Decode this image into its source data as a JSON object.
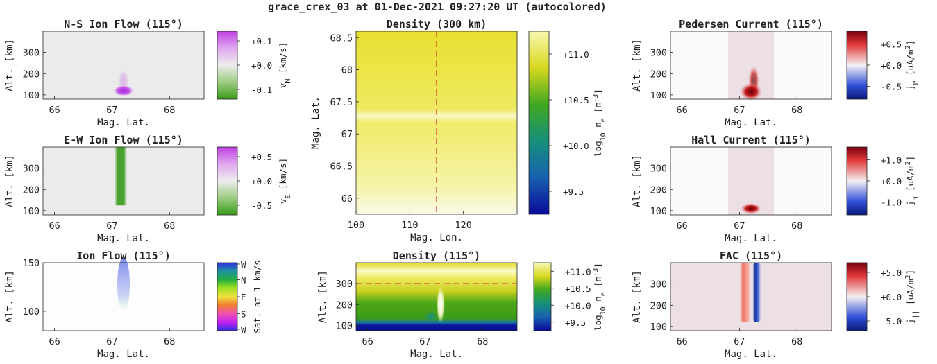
{
  "suptitle": "grace_crex_03 at 01-Dec-2021 09:27:20 UT (autocolored)",
  "colors": {
    "flow_neg": "#3a9a1a",
    "flow_mid": "#ececec",
    "flow_pos": "#c040e0",
    "bwr_neg": "#1a2a9a",
    "bwr_mid": "#ece0e4",
    "bwr_pos": "#8a0010",
    "density_low": "#0a1a9a",
    "density_mid": "#34a018",
    "density_high": "#f8f8a8"
  },
  "chart_data": [
    {
      "id": "ns-ion-flow",
      "type": "heatmap",
      "title": "N-S Ion Flow (115°)",
      "xlabel": "Mag. Lat.",
      "ylabel": "Alt. [km]",
      "xlim": [
        65.8,
        68.6
      ],
      "ylim": [
        80,
        400
      ],
      "xticks": [
        "66",
        "67",
        "68"
      ],
      "yticks": [
        "100",
        "200",
        "300"
      ],
      "colorbar": {
        "label": "v_N [km/s]",
        "ticks": [
          "+0.1",
          "+0.0",
          "-0.1"
        ],
        "range": [
          -0.14,
          0.14
        ]
      },
      "feature": {
        "kind": "blob",
        "lat": 67.2,
        "alt": 120,
        "value": 0.1
      }
    },
    {
      "id": "ew-ion-flow",
      "type": "heatmap",
      "title": "E-W Ion Flow (115°)",
      "xlabel": "Mag. Lat.",
      "ylabel": "Alt. [km]",
      "xlim": [
        65.8,
        68.6
      ],
      "ylim": [
        80,
        400
      ],
      "xticks": [
        "66",
        "67",
        "68"
      ],
      "yticks": [
        "100",
        "200",
        "300"
      ],
      "colorbar": {
        "label": "v_E [km/s]",
        "ticks": [
          "+0.5",
          "+0.0",
          "-0.5"
        ],
        "range": [
          -0.7,
          0.7
        ]
      },
      "feature": {
        "kind": "column",
        "lat": 67.15,
        "alt_range": [
          125,
          400
        ],
        "value": -0.5
      }
    },
    {
      "id": "ion-flow",
      "type": "heatmap",
      "title": "Ion Flow (115°)",
      "xlabel": "Mag. Lat.",
      "ylabel": "Alt. [km]",
      "xlim": [
        65.8,
        68.6
      ],
      "ylim": [
        80,
        150
      ],
      "xticks": [
        "66",
        "67",
        "68"
      ],
      "yticks": [
        "100",
        "150"
      ],
      "colorbar": {
        "label": "Sat. at 1 km/s",
        "ticks": [
          "W",
          "N",
          "E",
          "S",
          "W"
        ]
      },
      "feature": {
        "kind": "faint-column",
        "lat": 67.2,
        "alt_range": [
          105,
          150
        ],
        "direction": "N"
      }
    },
    {
      "id": "density-300km",
      "type": "heatmap",
      "title": "Density (300 km)",
      "xlabel": "Mag. Lon.",
      "ylabel": "Mag. Lat.",
      "xlim": [
        100,
        130
      ],
      "ylim": [
        65.75,
        68.6
      ],
      "xticks": [
        "100",
        "110",
        "120"
      ],
      "yticks": [
        "66",
        "66.5",
        "67",
        "67.5",
        "68",
        "68.5"
      ],
      "colorbar": {
        "label": "log10 n_e [m^-3]",
        "ticks": [
          "+11.0",
          "+10.5",
          "+10.0",
          "+9.5"
        ],
        "range": [
          9.25,
          11.25
        ]
      },
      "marker": {
        "kind": "vertical-dashed",
        "lon": 115
      },
      "feature": {
        "kind": "band",
        "lat": 67.28,
        "value": 11.1
      }
    },
    {
      "id": "density-115",
      "type": "heatmap",
      "title": "Density (115°)",
      "xlabel": "Mag. Lat.",
      "ylabel": "Alt. [km]",
      "xlim": [
        65.8,
        68.6
      ],
      "ylim": [
        75,
        400
      ],
      "xticks": [
        "66",
        "67",
        "68"
      ],
      "yticks": [
        "100",
        "200",
        "300"
      ],
      "colorbar": {
        "label": "log10 n_e [m^-3]",
        "ticks": [
          "+11.0",
          "+10.5",
          "+10.0",
          "+9.5"
        ],
        "range": [
          9.25,
          11.25
        ]
      },
      "marker": {
        "kind": "horizontal-dashed",
        "alt": 300
      },
      "feature": {
        "kind": "spike",
        "lat": 67.27,
        "alt_range": [
          130,
          310
        ],
        "value": 11.2
      }
    },
    {
      "id": "pedersen-current",
      "type": "heatmap",
      "title": "Pedersen Current (115°)",
      "xlabel": "Mag. Lat.",
      "ylabel": "Alt. [km]",
      "xlim": [
        65.8,
        68.6
      ],
      "ylim": [
        80,
        400
      ],
      "xticks": [
        "66",
        "67",
        "68"
      ],
      "yticks": [
        "100",
        "200",
        "300"
      ],
      "colorbar": {
        "label": "j_P [uA/m^2]",
        "ticks": [
          "+0.5",
          "+0.0",
          "-0.5"
        ],
        "range": [
          -0.8,
          0.8
        ]
      },
      "feature": {
        "kind": "blob",
        "lat": 67.2,
        "alt": 115,
        "value": 0.7,
        "region": [
          66.8,
          67.6
        ]
      }
    },
    {
      "id": "hall-current",
      "type": "heatmap",
      "title": "Hall Current (115°)",
      "xlabel": "Mag. Lat.",
      "ylabel": "Alt. [km]",
      "xlim": [
        65.8,
        68.6
      ],
      "ylim": [
        80,
        400
      ],
      "xticks": [
        "66",
        "67",
        "68"
      ],
      "yticks": [
        "100",
        "200",
        "300"
      ],
      "colorbar": {
        "label": "j_H [uA/m^2]",
        "ticks": [
          "+1.0",
          "+0.0",
          "-1.0"
        ],
        "range": [
          -1.6,
          1.6
        ]
      },
      "feature": {
        "kind": "blob",
        "lat": 67.2,
        "alt": 110,
        "value": 1.5,
        "region": [
          66.8,
          67.6
        ]
      }
    },
    {
      "id": "fac",
      "type": "heatmap",
      "title": "FAC (115°)",
      "xlabel": "Mag. Lat.",
      "ylabel": "Alt. [km]",
      "xlim": [
        65.8,
        68.6
      ],
      "ylim": [
        80,
        400
      ],
      "xticks": [
        "66",
        "67",
        "68"
      ],
      "yticks": [
        "100",
        "200",
        "300"
      ],
      "colorbar": {
        "label": "j_|| [uA/m^2]",
        "ticks": [
          "+5.0",
          "+0.0",
          "-5.0"
        ],
        "range": [
          -7,
          7
        ]
      },
      "feature": {
        "kind": "dipole",
        "lat_pos": 67.1,
        "lat_neg": 67.3,
        "alt_range": [
          120,
          400
        ],
        "value": 5.0
      }
    }
  ]
}
